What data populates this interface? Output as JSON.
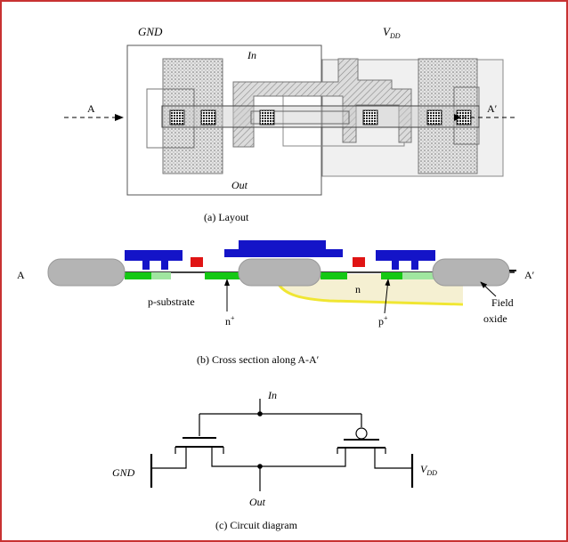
{
  "layout": {
    "label_gnd": "GND",
    "label_vdd_main": "V",
    "label_vdd_sub": "DD",
    "label_in": "In",
    "label_out": "Out",
    "label_a": "A",
    "label_a_prime": "A′",
    "caption": "(a) Layout"
  },
  "cross_section": {
    "label_a": "A",
    "label_a_prime": "A′",
    "label_p_substrate": "p-substrate",
    "label_n_main": "n",
    "label_n_sup": "+",
    "label_nwell": "n",
    "label_p_main": "p",
    "label_p_sup": "+",
    "label_field": "Field",
    "label_oxide": "oxide",
    "caption": "(b) Cross section along A-A′"
  },
  "circuit": {
    "label_in": "In",
    "label_gnd": "GND",
    "label_out": "Out",
    "label_vdd_main": "V",
    "label_vdd_sub": "DD",
    "caption": "(c) Circuit diagram"
  },
  "colors": {
    "frame": "#c83232",
    "metal": "#1414c8",
    "contact": "#e01414",
    "diffusion": "#14c814",
    "light_diffusion": "#a0e6a0",
    "nwell": "#f5f0d2",
    "nwell_edge": "#f0e632",
    "field_oxide": "#b4b4b4"
  }
}
